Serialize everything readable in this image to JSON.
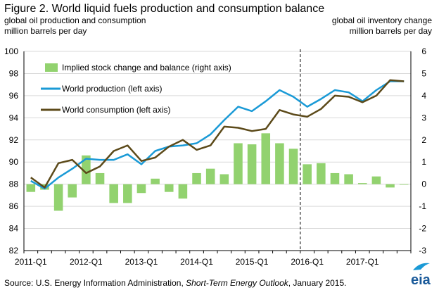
{
  "chart_data": {
    "type": "bar+line",
    "title": "Figure 2. World liquid fuels production and consumption balance",
    "left_axis_title": [
      "global oil production and consumption",
      "million barrels per day"
    ],
    "right_axis_title": [
      "global oil inventory change",
      "million barrels per day"
    ],
    "left_ylim": [
      82,
      100
    ],
    "left_ticks": [
      "100",
      "98",
      "96",
      "94",
      "92",
      "90",
      "88",
      "86",
      "84",
      "82"
    ],
    "right_ylim": [
      -3,
      6
    ],
    "right_ticks": [
      "6",
      "5",
      "4",
      "3",
      "2",
      "1",
      "0",
      "-1",
      "-2",
      "-3"
    ],
    "x_ticks": [
      "2011-Q1",
      "2012-Q1",
      "2013-Q1",
      "2014-Q1",
      "2015-Q1",
      "2016-Q1",
      "2017-Q1"
    ],
    "forecast_divider_after_index": 19,
    "grid": true,
    "legend": {
      "placement": "top-left",
      "items": [
        {
          "label": "Implied stock change and balance (right axis)",
          "color": "#92d26f",
          "kind": "bar"
        },
        {
          "label": "World production (left axis)",
          "color": "#1a9ad6",
          "kind": "line"
        },
        {
          "label": "World consumption (left axis)",
          "color": "#5c4a1a",
          "kind": "line"
        }
      ]
    },
    "quarters": 28,
    "series": [
      {
        "name": "Implied stock change and balance (right axis)",
        "axis": "right",
        "kind": "bar",
        "color": "#92d26f",
        "values": [
          -0.35,
          -0.25,
          -1.2,
          -0.6,
          1.3,
          0.5,
          -0.85,
          -0.85,
          -0.4,
          0.25,
          -0.35,
          -0.65,
          0.5,
          0.7,
          0.45,
          1.85,
          1.8,
          2.3,
          1.85,
          1.6,
          0.9,
          0.95,
          0.5,
          0.45,
          0.05,
          0.35,
          -0.15,
          0.0
        ]
      },
      {
        "name": "World production (left axis)",
        "axis": "left",
        "kind": "line",
        "color": "#1a9ad6",
        "values": [
          88.3,
          87.6,
          88.6,
          89.4,
          90.3,
          90.2,
          90.2,
          90.7,
          89.8,
          91.0,
          91.4,
          91.5,
          91.7,
          92.5,
          93.8,
          95.0,
          94.6,
          95.5,
          96.5,
          95.9,
          95.0,
          95.7,
          96.5,
          96.3,
          95.5,
          96.5,
          97.3,
          97.3
        ]
      },
      {
        "name": "World consumption (left axis)",
        "axis": "left",
        "kind": "line",
        "color": "#5c4a1a",
        "values": [
          88.6,
          87.7,
          89.9,
          90.2,
          89.0,
          89.6,
          91.0,
          91.5,
          90.1,
          90.4,
          91.4,
          92.0,
          91.1,
          91.5,
          93.2,
          93.1,
          92.8,
          93.0,
          94.7,
          94.3,
          94.1,
          94.8,
          96.0,
          95.9,
          95.4,
          96.0,
          97.4,
          97.3
        ]
      }
    ],
    "source_prefix": "Source: U.S. Energy Information Administration, ",
    "source_italic": "Short-Term Energy Outlook",
    "source_suffix": ", January 2015.",
    "logo_text": "eia"
  }
}
